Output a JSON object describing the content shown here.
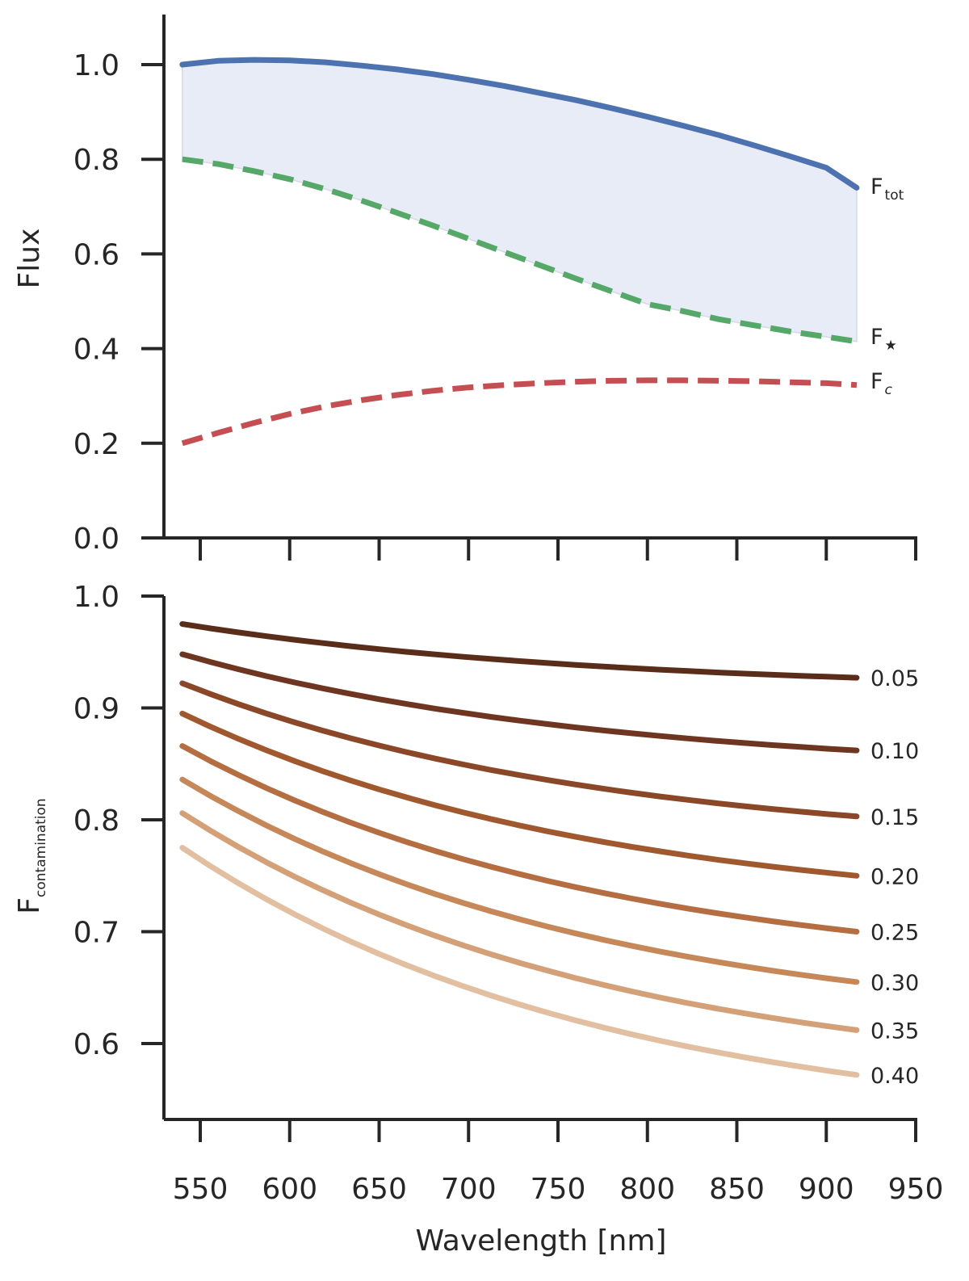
{
  "chart_data": [
    {
      "type": "line",
      "panel": "top",
      "title": "",
      "xlabel": "",
      "ylabel": "Flux",
      "xlim": [
        530,
        950
      ],
      "ylim": [
        0.0,
        1.1
      ],
      "xticks": [
        550,
        600,
        650,
        700,
        750,
        800,
        850,
        900,
        950
      ],
      "yticks": [
        "0.0",
        "0.2",
        "0.4",
        "0.6",
        "0.8",
        "1.0"
      ],
      "grid": false,
      "x": [
        540,
        560,
        580,
        600,
        620,
        640,
        660,
        680,
        700,
        720,
        740,
        760,
        780,
        800,
        820,
        840,
        860,
        880,
        900,
        917
      ],
      "series": [
        {
          "name": "F_tot",
          "label_main": "F",
          "label_sub": "tot",
          "style": "solid",
          "color": "#4c72b0",
          "values": [
            1.0,
            1.008,
            1.01,
            1.009,
            1.005,
            0.998,
            0.99,
            0.98,
            0.968,
            0.955,
            0.94,
            0.925,
            0.908,
            0.89,
            0.871,
            0.851,
            0.829,
            0.806,
            0.782,
            0.74
          ]
        },
        {
          "name": "F_star",
          "label_main": "F",
          "label_sub": "★",
          "style": "dashed",
          "color": "#55a868",
          "values": [
            0.8,
            0.79,
            0.775,
            0.758,
            0.737,
            0.713,
            0.687,
            0.66,
            0.632,
            0.604,
            0.576,
            0.548,
            0.521,
            0.494,
            0.479,
            0.462,
            0.449,
            0.436,
            0.425,
            0.415
          ]
        },
        {
          "name": "F_c",
          "label_main": "F",
          "label_sub": "c",
          "style": "dashed",
          "color": "#c44e52",
          "values": [
            0.2,
            0.222,
            0.243,
            0.262,
            0.278,
            0.291,
            0.302,
            0.311,
            0.318,
            0.323,
            0.327,
            0.33,
            0.332,
            0.333,
            0.333,
            0.332,
            0.331,
            0.329,
            0.327,
            0.323
          ]
        }
      ],
      "fill_between": {
        "upper": "F_tot",
        "lower": "F_star",
        "color": "#e8ecf6"
      }
    },
    {
      "type": "line",
      "panel": "bottom",
      "title": "",
      "xlabel": "Wavelength [nm]",
      "ylabel_main": "F",
      "ylabel_sub": "contamination",
      "xlim": [
        530,
        950
      ],
      "ylim": [
        0.53,
        1.0
      ],
      "xticks": [
        550,
        600,
        650,
        700,
        750,
        800,
        850,
        900,
        950
      ],
      "xtick_labels": [
        "550",
        "600",
        "650",
        "700",
        "750",
        "800",
        "850",
        "900",
        "950"
      ],
      "yticks": [
        "0.6",
        "0.7",
        "0.8",
        "0.9",
        "1.0"
      ],
      "grid": false,
      "x": [
        540,
        917
      ],
      "series": [
        {
          "name": "0.05",
          "start": 0.975,
          "end": 0.927,
          "color": "#5a2d1a"
        },
        {
          "name": "0.10",
          "start": 0.948,
          "end": 0.862,
          "color": "#6e3620"
        },
        {
          "name": "0.15",
          "start": 0.922,
          "end": 0.803,
          "color": "#8a4828"
        },
        {
          "name": "0.20",
          "start": 0.895,
          "end": 0.75,
          "color": "#a0582f"
        },
        {
          "name": "0.25",
          "start": 0.866,
          "end": 0.7,
          "color": "#b56e42"
        },
        {
          "name": "0.30",
          "start": 0.836,
          "end": 0.655,
          "color": "#c68759"
        },
        {
          "name": "0.35",
          "start": 0.806,
          "end": 0.612,
          "color": "#d4a078"
        },
        {
          "name": "0.40",
          "start": 0.775,
          "end": 0.572,
          "color": "#e2bfa0"
        }
      ]
    }
  ]
}
